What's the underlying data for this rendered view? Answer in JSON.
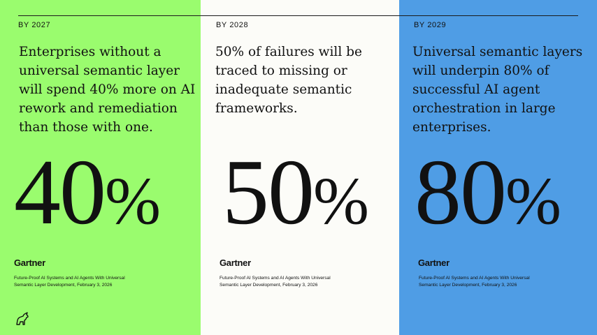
{
  "panels": [
    {
      "year": "BY 2027",
      "statement": [
        "Enterprises without a",
        "universal semantic layer",
        "will spend 40% more on AI",
        "rework and remediation",
        "than those with one."
      ],
      "big_number": "40",
      "big_suffix": "%",
      "logo": "Gartner",
      "source": [
        "Future-Proof AI Systems and AI Agents With Universal",
        "Semantic Layer Development, February 3, 2026"
      ],
      "color": "#9afc6e"
    },
    {
      "year": "BY 2028",
      "statement": [
        "50% of failures will be",
        "traced to missing or",
        "inadequate semantic",
        "frameworks."
      ],
      "big_number": "50",
      "big_suffix": "%",
      "logo": "Gartner",
      "source": [
        "Future-Proof AI Systems and AI Agents With Universal",
        "Semantic Layer Development, February 3, 2026"
      ],
      "color": "#fcfcf8"
    },
    {
      "year": "BY 2029",
      "statement": [
        "Universal semantic layers",
        "will underpin 80% of",
        "successful AI agent",
        "orchestration in large",
        "enterprises."
      ],
      "big_number": "80",
      "big_suffix": "%",
      "logo": "Gartner",
      "source": [
        "Future-Proof AI Systems and AI Agents With Universal",
        "Semantic Layer Development, February 3, 2026"
      ],
      "color": "#4f9de5"
    }
  ],
  "corner_icon": "bull-icon"
}
